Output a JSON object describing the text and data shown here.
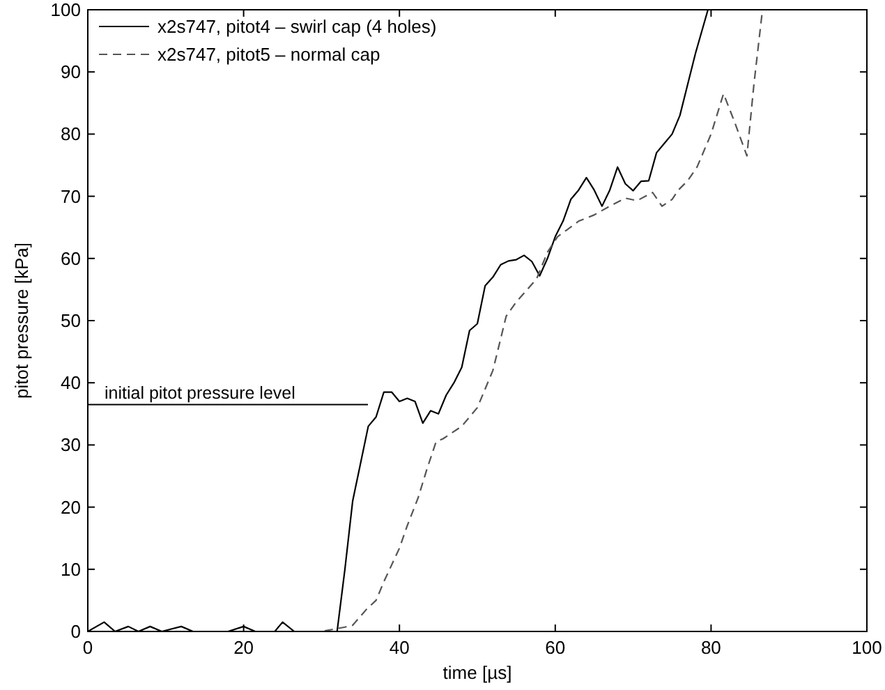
{
  "chart_data": {
    "type": "line",
    "xlabel": "time [µs]",
    "ylabel": "pitot pressure [kPa]",
    "xlim": [
      0,
      100
    ],
    "ylim": [
      0,
      100
    ],
    "xticks": [
      0,
      20,
      40,
      60,
      80,
      100
    ],
    "yticks": [
      0,
      10,
      20,
      30,
      40,
      50,
      60,
      70,
      80,
      90,
      100
    ],
    "grid": false,
    "legend": "top left",
    "marker": "none",
    "series": [
      {
        "name": "x2s747, pitot4 – swirl cap (4 holes)",
        "color": "#000000",
        "line_style": "solid",
        "x": [
          0,
          2.1,
          3.5,
          5.2,
          6.5,
          8,
          9.5,
          12,
          13.5,
          18,
          20,
          21.5,
          24,
          25,
          26.5,
          28,
          30,
          31.5,
          32,
          33,
          34,
          35,
          36,
          37,
          38,
          39,
          40,
          41,
          42,
          43,
          44,
          45,
          46,
          47,
          48,
          49,
          50,
          51,
          52,
          53,
          54,
          55,
          56,
          57,
          58,
          59,
          60,
          61,
          62,
          63,
          64,
          65,
          66,
          67,
          68,
          69,
          70,
          71,
          72,
          73,
          74,
          75,
          76,
          77,
          78,
          79.6
        ],
        "values": [
          0,
          1.5,
          0,
          0.8,
          0,
          0.8,
          0,
          0.8,
          0,
          0,
          0.8,
          0,
          0,
          1.5,
          0,
          0,
          0,
          0,
          0,
          10,
          21,
          27,
          33,
          34.5,
          38.5,
          38.5,
          37,
          37.5,
          37,
          33.5,
          35.5,
          35,
          38,
          40,
          42.5,
          48.4,
          49.5,
          55.6,
          57,
          59,
          59.6,
          59.8,
          60.5,
          59.5,
          57.2,
          60,
          63.5,
          66,
          69.5,
          71,
          73,
          71,
          68.4,
          71,
          74.7,
          72,
          70.9,
          72.4,
          72.5,
          77,
          78.5,
          80,
          83,
          88,
          93,
          100
        ]
      },
      {
        "name": "x2s747, pitot5 – normal cap",
        "color": "#555555",
        "line_style": "dashed",
        "x": [
          0,
          10,
          20,
          30,
          33,
          34,
          35.8,
          37,
          38,
          40,
          41,
          42.4,
          43.5,
          44.7,
          45.6,
          48,
          50,
          52,
          53.7,
          55,
          57.6,
          59,
          60.3,
          61.5,
          63,
          65,
          67,
          69,
          70.5,
          72.5,
          73.7,
          75,
          75.8,
          77,
          78.2,
          80,
          81.6,
          83,
          84.6,
          85.5,
          86.6
        ],
        "values": [
          0,
          0,
          0,
          0,
          0.7,
          1,
          3.6,
          5,
          8,
          13.4,
          17,
          21.5,
          26,
          30.5,
          31,
          33,
          36,
          42,
          50.7,
          53,
          56.7,
          61,
          63.5,
          64.6,
          66,
          67,
          68.4,
          69.7,
          69.3,
          70.6,
          68.4,
          69.5,
          71,
          72.5,
          74.7,
          80,
          86.5,
          82,
          76.5,
          88,
          100
        ]
      }
    ],
    "ref_lines": [
      {
        "axis": "y",
        "value": 36.5,
        "label": "initial pitot pressure level",
        "color": "#000000",
        "line_style": "solid"
      }
    ]
  }
}
